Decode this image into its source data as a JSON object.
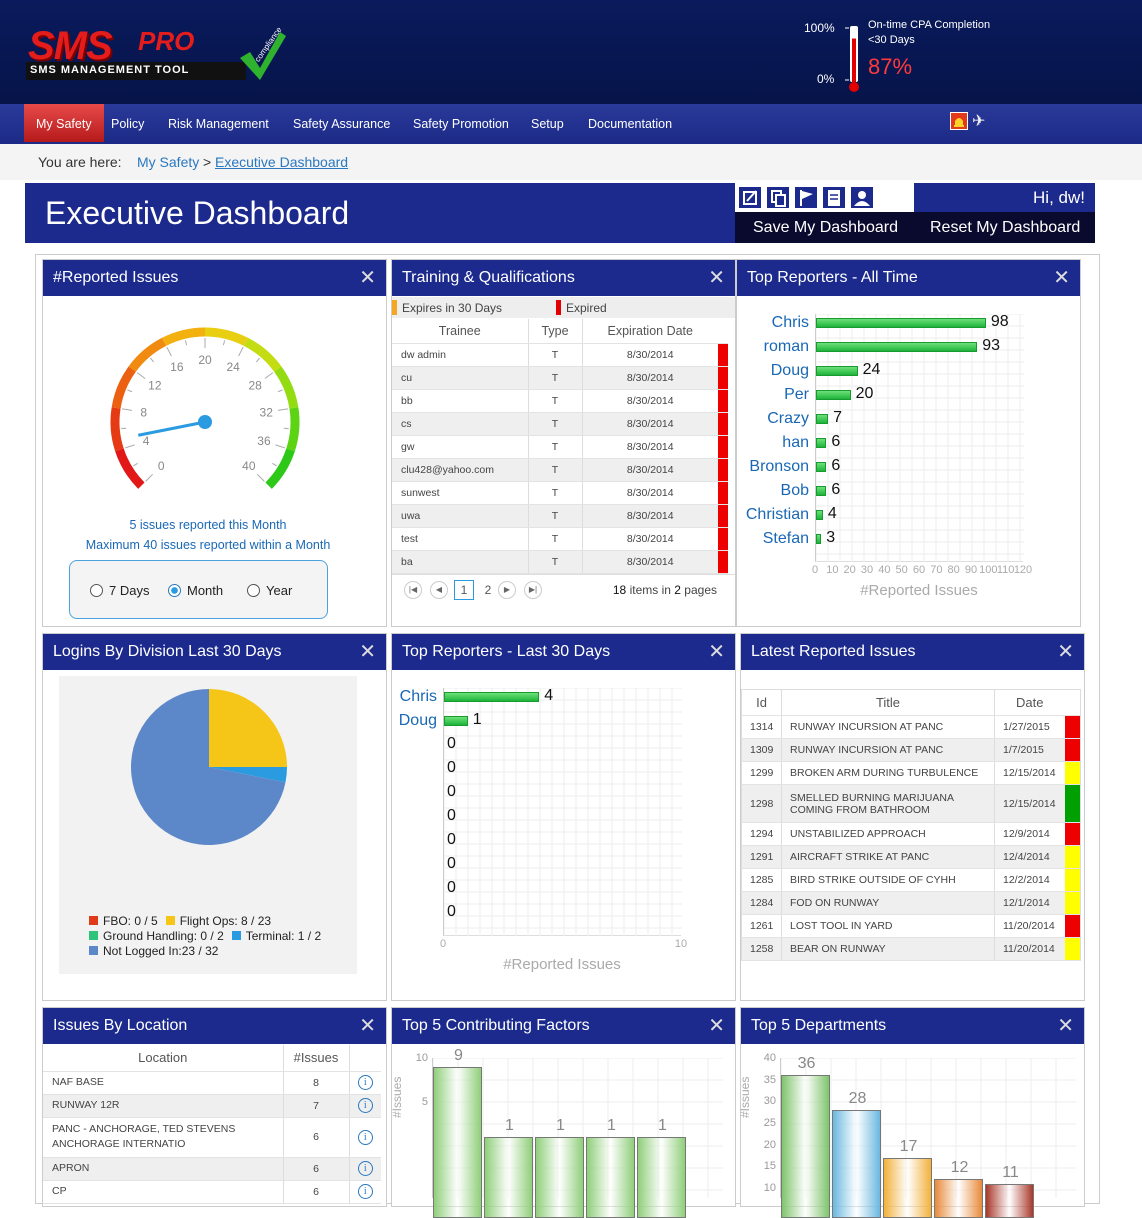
{
  "logo": {
    "brand1": "SMS",
    "brand2": "PRO",
    "tagline": "SMS MANAGEMENT TOOL",
    "badge": "compliance"
  },
  "cpa": {
    "max": "100%",
    "min": "0%",
    "title": "On-time CPA Completion",
    "subtitle": "<30 Days",
    "value": "87%",
    "fraction": 0.87
  },
  "nav": {
    "items": [
      "My Safety",
      "Policy",
      "Risk Management",
      "Safety Assurance",
      "Safety Promotion",
      "Setup",
      "Documentation"
    ]
  },
  "breadcrumb": {
    "prefix": "You are here:",
    "parent": "My Safety",
    "sep": ">",
    "current": "Executive Dashboard"
  },
  "header": {
    "title": "Executive Dashboard",
    "greeting": "Hi, dw!",
    "save": "Save My Dashboard",
    "reset": "Reset My Dashboard"
  },
  "reported": {
    "title": "#Reported Issues",
    "ticks": [
      "0",
      "4",
      "8",
      "12",
      "16",
      "20",
      "24",
      "28",
      "32",
      "36",
      "40"
    ],
    "value": 5,
    "max": 40,
    "line1": "5 issues reported this Month",
    "line2": "Maximum 40 issues reported within a Month",
    "options": [
      "7 Days",
      "Month",
      "Year"
    ],
    "selected": "Month"
  },
  "training": {
    "title": "Training & Qualifications",
    "legend_warn": "Expires in 30 Days",
    "legend_exp": "Expired",
    "cols": [
      "Trainee",
      "Type",
      "Expiration Date"
    ],
    "rows": [
      [
        "dw admin",
        "T",
        "8/30/2014"
      ],
      [
        "cu",
        "T",
        "8/30/2014"
      ],
      [
        "bb",
        "T",
        "8/30/2014"
      ],
      [
        "cs",
        "T",
        "8/30/2014"
      ],
      [
        "gw",
        "T",
        "8/30/2014"
      ],
      [
        "clu428@yahoo.com",
        "T",
        "8/30/2014"
      ],
      [
        "sunwest",
        "T",
        "8/30/2014"
      ],
      [
        "uwa",
        "T",
        "8/30/2014"
      ],
      [
        "test",
        "T",
        "8/30/2014"
      ],
      [
        "ba",
        "T",
        "8/30/2014"
      ]
    ],
    "pages": [
      "1",
      "2"
    ],
    "summary_a": "18",
    "summary_b": "items in",
    "summary_c": "2",
    "summary_d": "pages"
  },
  "topall": {
    "title": "Top Reporters - All Time",
    "axis": "#Reported Issues",
    "max": 120,
    "ticks": [
      "0",
      "10",
      "20",
      "30",
      "40",
      "50",
      "60",
      "70",
      "80",
      "90",
      "100",
      "110",
      "120"
    ],
    "names": [
      "Chris",
      "roman",
      "Doug",
      "Per",
      "Crazy",
      "han",
      "Bronson",
      "Bob",
      "Christian",
      "Stefan"
    ],
    "values": [
      98,
      93,
      24,
      20,
      7,
      6,
      6,
      6,
      4,
      3
    ]
  },
  "logins": {
    "title": "Logins By Division Last 30 Days",
    "legend": [
      {
        "label": "FBO: 0 / 5",
        "color": "#e03a1c"
      },
      {
        "label": "Flight Ops: 8 / 23",
        "color": "#f5c518"
      },
      {
        "label": "Ground Handling: 0 / 2",
        "color": "#2ec57a"
      },
      {
        "label": "Terminal: 1 / 2",
        "color": "#2a9be0"
      },
      {
        "label": "Not Logged In:23 / 32",
        "color": "#5c88c9"
      }
    ],
    "slices": [
      {
        "value": 8,
        "color": "#f5c518"
      },
      {
        "value": 1,
        "color": "#2a9be0"
      },
      {
        "value": 23,
        "color": "#5c88c9"
      }
    ]
  },
  "top30": {
    "title": "Top Reporters - Last 30 Days",
    "axis": "#Reported Issues",
    "max": 10,
    "ticks": [
      "0",
      "10"
    ],
    "names": [
      "Chris",
      "Doug",
      "",
      "",
      "",
      "",
      "",
      "",
      "",
      ""
    ],
    "values": [
      4,
      1,
      0,
      0,
      0,
      0,
      0,
      0,
      0,
      0
    ]
  },
  "latest": {
    "title": "Latest Reported Issues",
    "cols": [
      "Id",
      "Title",
      "Date"
    ],
    "rows": [
      [
        "1314",
        "RUNWAY INCURSION AT PANC",
        "1/27/2015",
        "#ee0000"
      ],
      [
        "1309",
        "RUNWAY INCURSION AT PANC",
        "1/7/2015",
        "#ee0000"
      ],
      [
        "1299",
        "BROKEN ARM DURING TURBULENCE",
        "12/15/2014",
        "#ffff00"
      ],
      [
        "1298",
        "SMELLED BURNING MARIJUANA COMING FROM BATHROOM",
        "12/15/2014",
        "#00a000"
      ],
      [
        "1294",
        "UNSTABILIZED APPROACH",
        "12/9/2014",
        "#ee0000"
      ],
      [
        "1291",
        "AIRCRAFT STRIKE AT PANC",
        "12/4/2014",
        "#ffff00"
      ],
      [
        "1285",
        "BIRD STRIKE OUTSIDE OF CYHH",
        "12/2/2014",
        "#ffff00"
      ],
      [
        "1284",
        "FOD ON RUNWAY",
        "12/1/2014",
        "#ffff00"
      ],
      [
        "1261",
        "LOST TOOL IN YARD",
        "11/20/2014",
        "#ee0000"
      ],
      [
        "1258",
        "BEAR ON RUNWAY",
        "11/20/2014",
        "#ffff00"
      ]
    ]
  },
  "location": {
    "title": "Issues By Location",
    "cols": [
      "Location",
      "#Issues"
    ],
    "rows": [
      [
        "NAF BASE",
        "8"
      ],
      [
        "RUNWAY 12R",
        "7"
      ],
      [
        "PANC - ANCHORAGE, TED STEVENS ANCHORAGE INTERNATIO",
        "6"
      ],
      [
        "APRON",
        "6"
      ],
      [
        "CP",
        "6"
      ]
    ]
  },
  "factors": {
    "title": "Top 5 Contributing Factors",
    "ylabel": "#Issues",
    "ticks": [
      "10",
      "5"
    ],
    "max": 10,
    "values": [
      9,
      1,
      1,
      1,
      1
    ],
    "labels": [
      "9",
      "1",
      "1",
      "1",
      "1"
    ]
  },
  "departments": {
    "title": "Top 5 Departments",
    "ylabel": "#Issues",
    "ticks": [
      "40",
      "35",
      "30",
      "25",
      "20",
      "15",
      "10"
    ],
    "min": 10,
    "max": 40,
    "values": [
      36,
      28,
      17,
      12,
      11
    ],
    "labels": [
      "36",
      "28",
      "17",
      "12",
      "11"
    ],
    "colors": [
      "#7fc46c",
      "#6ab8e0",
      "#f2b13c",
      "#e88a3a",
      "#a8382a"
    ]
  }
}
